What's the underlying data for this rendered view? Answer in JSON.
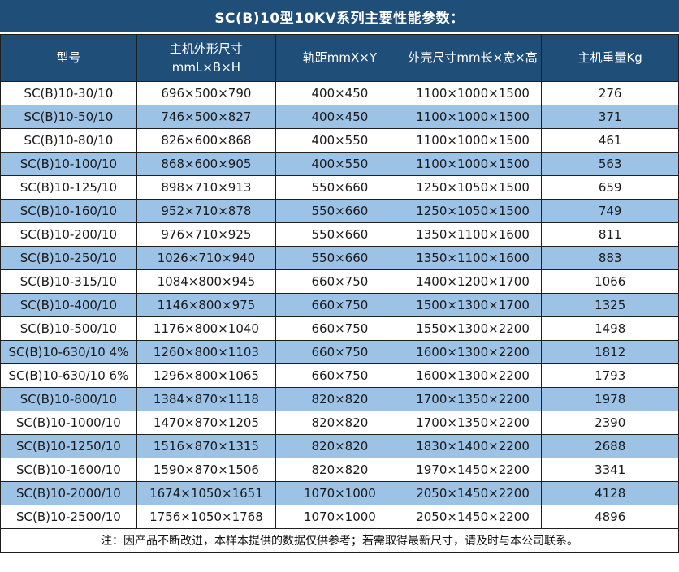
{
  "title": "SC(B)10型10KV系列主要性能参数：",
  "table": {
    "columns": [
      "型号",
      "主机外形尺寸\nmmL×B×H",
      "轨距mmX×Y",
      "外壳尺寸mm长×宽×高",
      "主机重量Kg"
    ],
    "rows": [
      [
        "SC(B)10-30/10",
        "696×500×790",
        "400×450",
        "1100×1000×1500",
        "276"
      ],
      [
        "SC(B)10-50/10",
        "746×500×827",
        "400×450",
        "1100×1000×1500",
        "371"
      ],
      [
        "SC(B)10-80/10",
        "826×600×868",
        "400×550",
        "1100×1000×1500",
        "461"
      ],
      [
        "SC(B)10-100/10",
        "868×600×905",
        "400×550",
        "1100×1000×1500",
        "563"
      ],
      [
        "SC(B)10-125/10",
        "898×710×913",
        "550×660",
        "1250×1050×1500",
        "659"
      ],
      [
        "SC(B)10-160/10",
        "952×710×878",
        "550×660",
        "1250×1050×1500",
        "749"
      ],
      [
        "SC(B)10-200/10",
        "976×710×925",
        "550×660",
        "1350×1100×1600",
        "811"
      ],
      [
        "SC(B)10-250/10",
        "1026×710×940",
        "550×660",
        "1350×1100×1600",
        "883"
      ],
      [
        "SC(B)10-315/10",
        "1084×800×945",
        "660×750",
        "1400×1200×1700",
        "1066"
      ],
      [
        "SC(B)10-400/10",
        "1146×800×975",
        "660×750",
        "1500×1300×1700",
        "1325"
      ],
      [
        "SC(B)10-500/10",
        "1176×800×1040",
        "660×750",
        "1550×1300×2200",
        "1498"
      ],
      [
        "SC(B)10-630/10 4%",
        "1260×800×1103",
        "660×750",
        "1600×1300×2200",
        "1812"
      ],
      [
        "SC(B)10-630/10 6%",
        "1296×800×1065",
        "660×750",
        "1600×1300×2200",
        "1793"
      ],
      [
        "SC(B)10-800/10",
        "1384×870×1118",
        "820×820",
        "1700×1350×2200",
        "1978"
      ],
      [
        "SC(B)10-1000/10",
        "1470×870×1205",
        "820×820",
        "1700×1350×2200",
        "2390"
      ],
      [
        "SC(B)10-1250/10",
        "1516×870×1315",
        "820×820",
        "1830×1400×2200",
        "2688"
      ],
      [
        "SC(B)10-1600/10",
        "1590×870×1506",
        "820×820",
        "1970×1450×2200",
        "3341"
      ],
      [
        "SC(B)10-2000/10",
        "1674×1050×1651",
        "1070×1000",
        "2050×1450×2200",
        "4128"
      ],
      [
        "SC(B)10-2500/10",
        "1756×1050×1768",
        "1070×1000",
        "2050×1450×2200",
        "4896"
      ]
    ]
  },
  "note": "注：因产品不断改进，本样本提供的数据仅供参考；若需取得最新尺寸，请及时与本公司联系。",
  "colors": {
    "header_bg": "#1F4E79",
    "header_text": "#FFFFFF",
    "alt_row_bg": "#9CC2E6",
    "row_bg": "#FFFFFF",
    "body_text": "#1A1A1A",
    "grid_border": "#1F1F1F"
  }
}
